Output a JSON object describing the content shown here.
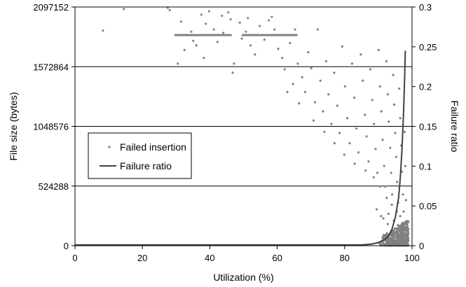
{
  "chart_data": {
    "type": "scatter",
    "xlabel": "Utilization (%)",
    "ylabel": "File size (bytes)",
    "y2label": "Failure ratio",
    "xlim": [
      0,
      100
    ],
    "ylim": [
      0,
      2097152
    ],
    "y2lim": [
      0,
      0.3
    ],
    "x_ticks": [
      0,
      20,
      40,
      60,
      80,
      100
    ],
    "y_ticks": [
      0,
      524288,
      1048576,
      1572864,
      2097152
    ],
    "y2_ticks": [
      0,
      0.05,
      0.1,
      0.15,
      0.2,
      0.25,
      0.3
    ],
    "y_tick_labels": [
      "0",
      "524288",
      "1048576",
      "1572864",
      "2097152"
    ],
    "y2_tick_labels": [
      "0",
      "0.05",
      "0.1",
      "0.15",
      "0.2",
      "0.25",
      "0.3"
    ],
    "x_tick_labels": [
      "0",
      "20",
      "40",
      "60",
      "80",
      "100"
    ],
    "grid": "horizontal",
    "legend_position": "center-left",
    "series": [
      {
        "name": "Failed insertion",
        "axis": "left",
        "marker": "dot",
        "color": "#808080",
        "points": [
          [
            14.5,
            2080000
          ],
          [
            8.3,
            1890000
          ],
          [
            27.5,
            2090000
          ],
          [
            28.1,
            2070000
          ],
          [
            31.5,
            1970000
          ],
          [
            33.2,
            1850000
          ],
          [
            35.1,
            1800000
          ],
          [
            36.0,
            1760000
          ],
          [
            37.5,
            2030000
          ],
          [
            38.8,
            1950000
          ],
          [
            41.2,
            1900000
          ],
          [
            42.3,
            1790000
          ],
          [
            45.5,
            2050000
          ],
          [
            46.2,
            1990000
          ],
          [
            48.9,
            1960000
          ],
          [
            49.5,
            1820000
          ],
          [
            51.3,
            2000000
          ],
          [
            50.7,
            1880000
          ],
          [
            52.1,
            1760000
          ],
          [
            53.4,
            1680000
          ],
          [
            44.0,
            1870000
          ],
          [
            47.2,
            1600000
          ],
          [
            46.8,
            1520000
          ],
          [
            56.2,
            1810000
          ],
          [
            57.5,
            1980000
          ],
          [
            59.2,
            1900000
          ],
          [
            60.3,
            1730000
          ],
          [
            61.5,
            1650000
          ],
          [
            62.2,
            1550000
          ],
          [
            63.8,
            1780000
          ],
          [
            64.7,
            1420000
          ],
          [
            65.3,
            1900000
          ],
          [
            66.1,
            1600000
          ],
          [
            67.4,
            1480000
          ],
          [
            68.3,
            1350000
          ],
          [
            69.2,
            1700000
          ],
          [
            70.1,
            1560000
          ],
          [
            71.2,
            1260000
          ],
          [
            72.0,
            1900000
          ],
          [
            72.8,
            1450000
          ],
          [
            73.6,
            1180000
          ],
          [
            74.5,
            1620000
          ],
          [
            75.2,
            1330000
          ],
          [
            76.1,
            1070000
          ],
          [
            76.9,
            1520000
          ],
          [
            77.8,
            1230000
          ],
          [
            78.5,
            990000
          ],
          [
            79.3,
            1750000
          ],
          [
            80.1,
            1400000
          ],
          [
            80.8,
            1120000
          ],
          [
            81.5,
            900000
          ],
          [
            82.2,
            1600000
          ],
          [
            82.9,
            1300000
          ],
          [
            83.5,
            1030000
          ],
          [
            84.1,
            820000
          ],
          [
            84.8,
            1680000
          ],
          [
            85.4,
            1450000
          ],
          [
            86.0,
            1150000
          ],
          [
            86.5,
            960000
          ],
          [
            87.1,
            740000
          ],
          [
            87.6,
            1550000
          ],
          [
            88.2,
            1280000
          ],
          [
            88.7,
            1070000
          ],
          [
            89.2,
            850000
          ],
          [
            89.7,
            640000
          ],
          [
            90.1,
            1720000
          ],
          [
            90.5,
            1400000
          ],
          [
            90.9,
            1180000
          ],
          [
            91.3,
            930000
          ],
          [
            91.7,
            700000
          ],
          [
            92.0,
            520000
          ],
          [
            92.4,
            1620000
          ],
          [
            92.8,
            1330000
          ],
          [
            93.1,
            1090000
          ],
          [
            93.5,
            860000
          ],
          [
            93.8,
            640000
          ],
          [
            94.1,
            450000
          ],
          [
            94.4,
            1500000
          ],
          [
            94.7,
            1240000
          ],
          [
            95.0,
            990000
          ],
          [
            95.3,
            780000
          ],
          [
            95.6,
            560000
          ],
          [
            95.9,
            380000
          ],
          [
            96.2,
            1380000
          ],
          [
            96.5,
            1120000
          ],
          [
            96.8,
            880000
          ],
          [
            97.0,
            650000
          ],
          [
            97.3,
            450000
          ],
          [
            97.5,
            300000
          ],
          [
            97.8,
            1000000
          ],
          [
            98.0,
            700000
          ],
          [
            98.2,
            400000
          ],
          [
            30.5,
            1600000
          ],
          [
            32.5,
            1720000
          ],
          [
            38.2,
            1650000
          ],
          [
            34.5,
            1880000
          ],
          [
            39.8,
            2060000
          ],
          [
            43.6,
            2020000
          ],
          [
            54.8,
            1930000
          ],
          [
            58.4,
            2010000
          ],
          [
            63.0,
            1350000
          ],
          [
            66.5,
            1250000
          ],
          [
            70.8,
            1100000
          ],
          [
            74.0,
            1000000
          ],
          [
            77.0,
            900000
          ],
          [
            79.9,
            800000
          ],
          [
            83.0,
            720000
          ],
          [
            86.2,
            660000
          ],
          [
            88.6,
            600000
          ],
          [
            90.5,
            520000
          ],
          [
            92.5,
            420000
          ],
          [
            94.0,
            360000
          ],
          [
            95.5,
            300000
          ],
          [
            96.5,
            260000
          ],
          [
            97.2,
            200000
          ],
          [
            97.7,
            150000
          ],
          [
            98.1,
            100000
          ],
          [
            93.0,
            280000
          ],
          [
            94.6,
            220000
          ],
          [
            95.8,
            180000
          ],
          [
            96.9,
            120000
          ],
          [
            97.6,
            60000
          ],
          [
            91.5,
            240000
          ],
          [
            92.8,
            190000
          ],
          [
            89.5,
            320000
          ],
          [
            90.8,
            260000
          ],
          [
            96.0,
            80000
          ],
          [
            97.0,
            40000
          ]
        ],
        "bands": [
          {
            "x_from": 29.5,
            "x_to": 46.5,
            "y": 1850000
          },
          {
            "x_from": 49.5,
            "x_to": 66.0,
            "y": 1850000
          }
        ],
        "dense_region": {
          "x_from": 90,
          "x_to": 99,
          "y_from": 0,
          "y_to": 230000
        }
      },
      {
        "name": "Failure ratio",
        "axis": "right",
        "type": "line",
        "color": "#404040",
        "x": [
          0,
          10,
          20,
          30,
          40,
          50,
          60,
          70,
          80,
          85,
          88,
          90,
          92,
          93,
          94,
          95,
          96,
          96.5,
          97,
          97.5,
          97.8,
          98
        ],
        "y": [
          0.001,
          0.001,
          0.001,
          0.001,
          0.001,
          0.001,
          0.001,
          0.001,
          0.001,
          0.001,
          0.002,
          0.004,
          0.008,
          0.012,
          0.02,
          0.035,
          0.06,
          0.085,
          0.12,
          0.17,
          0.21,
          0.245
        ]
      }
    ]
  }
}
